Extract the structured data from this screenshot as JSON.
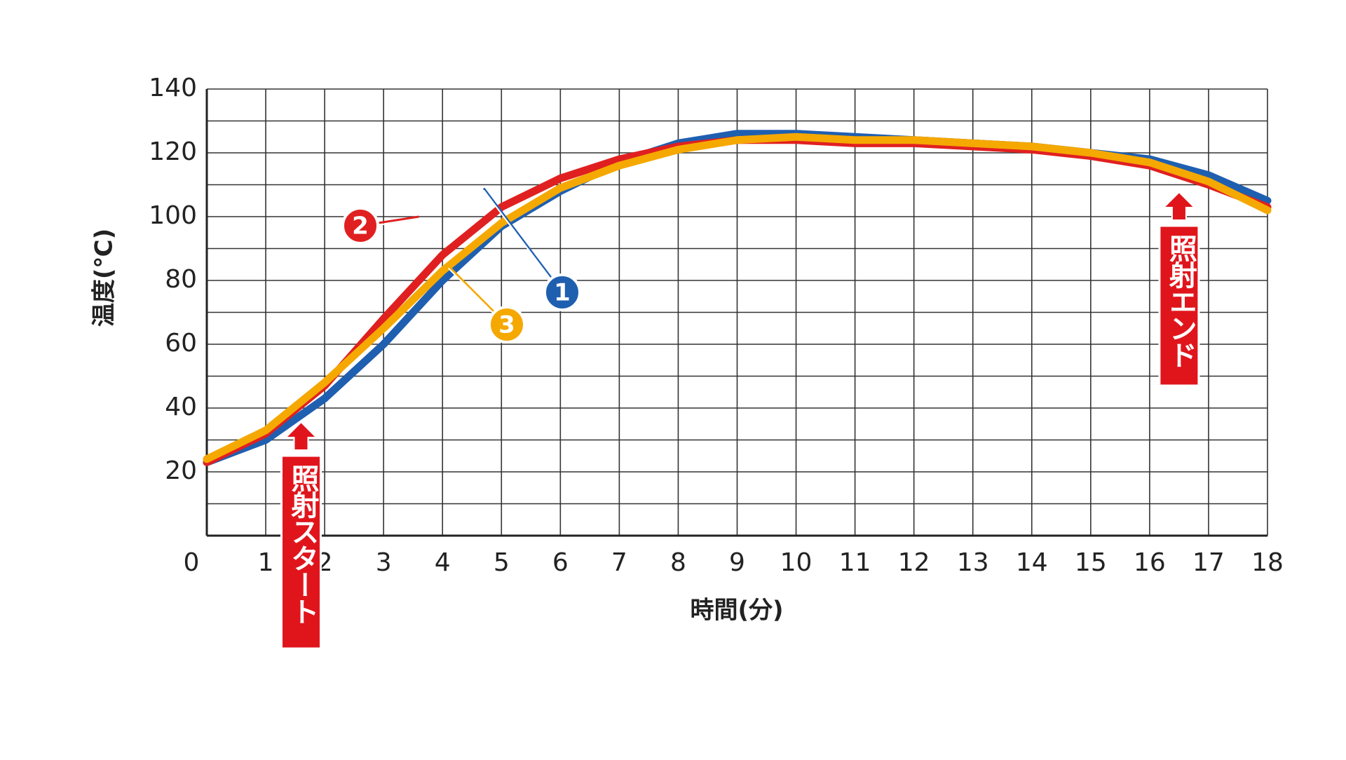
{
  "chart_data": {
    "type": "line",
    "y_label": "温度(℃)",
    "x_label": "時間(分)",
    "x": [
      0,
      1,
      2,
      3,
      4,
      5,
      6,
      7,
      8,
      9,
      10,
      11,
      12,
      13,
      14,
      15,
      16,
      17,
      18
    ],
    "series": [
      {
        "name": "1",
        "color": "#1f5fb0",
        "values": [
          23,
          30,
          43,
          60,
          80,
          97,
          108,
          117,
          123,
          126,
          126,
          125,
          124,
          123,
          122,
          120,
          118,
          113,
          105
        ]
      },
      {
        "name": "2",
        "color": "#e02020",
        "values": [
          23,
          32,
          47,
          68,
          88,
          103,
          112,
          118,
          122,
          124,
          124,
          123,
          123,
          122,
          121,
          119,
          116,
          110,
          103
        ]
      },
      {
        "name": "3",
        "color": "#f5a800",
        "values": [
          24,
          33,
          48,
          65,
          83,
          98,
          109,
          116,
          121,
          124,
          125,
          124,
          124,
          123,
          122,
          120,
          117,
          111,
          102
        ]
      }
    ],
    "xlim": [
      0,
      18
    ],
    "ylim": [
      0,
      140
    ],
    "xticks": [
      0,
      1,
      2,
      3,
      4,
      5,
      6,
      7,
      8,
      9,
      10,
      11,
      12,
      13,
      14,
      15,
      16,
      17,
      18
    ],
    "yticks": [
      20,
      40,
      60,
      80,
      100,
      120,
      140
    ],
    "ygrid": [
      10,
      20,
      30,
      40,
      50,
      60,
      70,
      80,
      90,
      100,
      110,
      120,
      130,
      140
    ],
    "grid": true,
    "annotations": [
      {
        "text": "照射スタート",
        "x": 1.6
      },
      {
        "text": "照射エンド",
        "x": 16.5
      }
    ]
  }
}
